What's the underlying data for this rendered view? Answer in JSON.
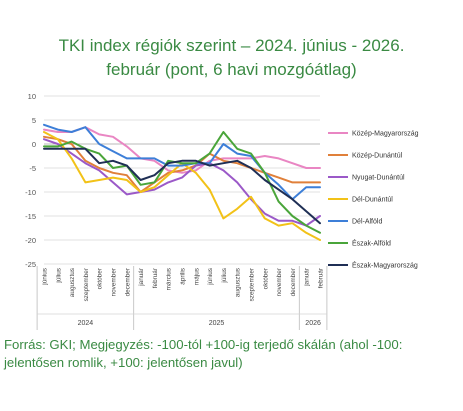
{
  "title_line1": "TKI index régiók szerint – 2024. június - 2026.",
  "title_line2": "február (pont, 6 havi mozgóátlag)",
  "source": "Forrás: GKI; Megjegyzés: -100-tól +100-ig terjedő skálán (ahol -100: jelentősen romlik, +100: jelentősen javul)",
  "colors": {
    "title": "#3a8a43"
  },
  "chart_data": {
    "type": "line",
    "ylim": [
      -25,
      10
    ],
    "yticks": [
      10,
      5,
      0,
      -5,
      -10,
      -15,
      -20,
      -25
    ],
    "categories": [
      "június",
      "július",
      "augusztus",
      "szeptember",
      "október",
      "november",
      "december",
      "január",
      "február",
      "március",
      "április",
      "május",
      "június",
      "július",
      "augusztus",
      "szeptember",
      "október",
      "november",
      "december",
      "január",
      "február"
    ],
    "year_labels": [
      "2024",
      "2025",
      "2026"
    ],
    "series": [
      {
        "name": "Közép-Magyarország",
        "color": "#e986c3",
        "values": [
          3,
          2.5,
          2.5,
          3.5,
          2,
          1.5,
          -0.5,
          -3,
          -3.5,
          -5.5,
          -6,
          -5.5,
          -3.5,
          -3,
          -3,
          -3,
          -2.5,
          -3,
          -4,
          -5,
          -5
        ]
      },
      {
        "name": "Közép-Dunántúl",
        "color": "#e0803a",
        "values": [
          1.5,
          1,
          0,
          -3.5,
          -5,
          -6,
          -6.5,
          -10,
          -8,
          -6,
          -5.5,
          -4.5,
          -2,
          -3.5,
          -4,
          -5,
          -6,
          -7,
          -8,
          -8,
          -8
        ]
      },
      {
        "name": "Nyugat-Dunántúl",
        "color": "#9b59c8",
        "values": [
          1,
          0,
          -2,
          -4,
          -5.5,
          -8,
          -10.5,
          -10,
          -9.5,
          -8,
          -7,
          -4.5,
          -4,
          -5.5,
          -8,
          -11.5,
          -14.5,
          -16,
          -16,
          -17,
          -15
        ]
      },
      {
        "name": "Dél-Dunántúl",
        "color": "#f2c218",
        "values": [
          2.5,
          1,
          -3,
          -8,
          -7.5,
          -7,
          -7.5,
          -10,
          -9,
          -6.5,
          -4,
          -6,
          -9.5,
          -15.5,
          -13.5,
          -11,
          -15.5,
          -17,
          -16.5,
          -18.5,
          -20
        ]
      },
      {
        "name": "Dél-Alföld",
        "color": "#3d7fd8",
        "values": [
          4,
          3,
          2.5,
          3.5,
          0,
          -1.5,
          -3,
          -3,
          -3,
          -4.5,
          -4.5,
          -4,
          -4,
          0,
          -2,
          -2.5,
          -6,
          -8.5,
          -11.5,
          -9,
          -9
        ]
      },
      {
        "name": "Észak-Alföld",
        "color": "#4aa53a",
        "values": [
          -0.5,
          -0.5,
          0.5,
          -1,
          -2,
          -5,
          -4.5,
          -8.5,
          -8,
          -3.5,
          -4,
          -4,
          -2,
          2.5,
          -1,
          -2,
          -6,
          -12,
          -15,
          -17,
          -18.5
        ]
      },
      {
        "name": "Észak-Magyarország",
        "color": "#1f2f55",
        "values": [
          -1,
          -1,
          -1,
          -1,
          -4,
          -3.5,
          -4.5,
          -7.5,
          -6.5,
          -4,
          -3.5,
          -3.5,
          -4.5,
          -4,
          -3.5,
          -5,
          -7.5,
          -9.5,
          -11.5,
          -14,
          -16.5
        ]
      }
    ]
  }
}
